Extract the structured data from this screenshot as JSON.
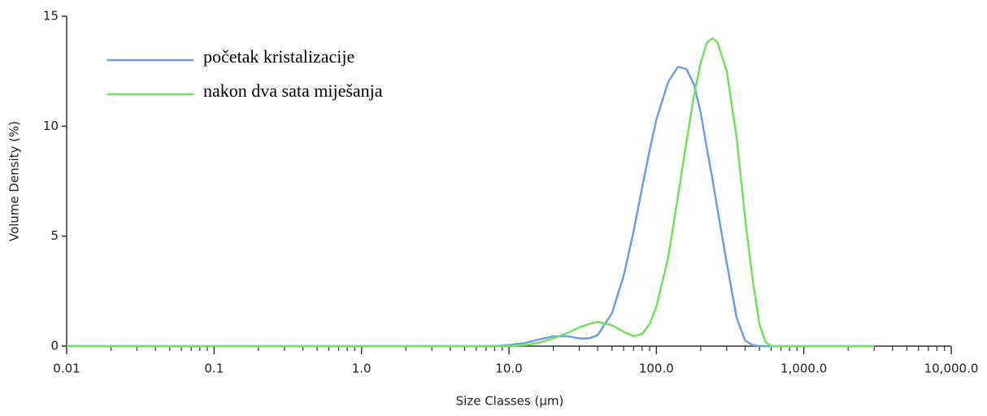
{
  "chart_data": {
    "type": "line",
    "xlabel": "Size Classes (µm)",
    "ylabel": "Volume Density (%)",
    "x": [
      0.01,
      5,
      8,
      10,
      13,
      16,
      20,
      25,
      30,
      35,
      40,
      50,
      60,
      70,
      80,
      90,
      100,
      120,
      140,
      160,
      180,
      200,
      220,
      240,
      260,
      300,
      350,
      400,
      450,
      500,
      550,
      600,
      3000
    ],
    "series": [
      {
        "name": "početak kristalizacije",
        "color": "#6f9fe0",
        "values": [
          0,
          0,
          0,
          0.05,
          0.15,
          0.3,
          0.45,
          0.45,
          0.35,
          0.35,
          0.5,
          1.5,
          3.2,
          5.2,
          7.2,
          8.9,
          10.3,
          12.0,
          12.7,
          12.6,
          11.9,
          10.6,
          9.0,
          7.6,
          6.2,
          3.8,
          1.3,
          0.25,
          0.05,
          0,
          0,
          0,
          0
        ]
      },
      {
        "name": "nakon dva sata miješanja",
        "color": "#74e05e",
        "values": [
          0,
          0,
          0,
          0,
          0.05,
          0.15,
          0.35,
          0.6,
          0.85,
          1.0,
          1.1,
          0.95,
          0.65,
          0.45,
          0.55,
          1.0,
          1.8,
          4.0,
          6.8,
          9.3,
          11.4,
          12.9,
          13.8,
          14.0,
          13.8,
          12.5,
          9.5,
          5.8,
          3.0,
          1.0,
          0.2,
          0,
          0
        ]
      }
    ],
    "xscale": "log",
    "xlim": [
      0.01,
      10000
    ],
    "xticks": [
      0.01,
      0.1,
      {
        "value": 1,
        "label": "1.0"
      },
      {
        "value": 10,
        "label": "10.0"
      },
      {
        "value": 100,
        "label": "100.0"
      },
      {
        "value": 1000,
        "label": "1,000.0"
      },
      {
        "value": 10000,
        "label": "10,000.0"
      }
    ],
    "xminorticks": [
      0.02,
      0.03,
      0.04,
      0.05,
      0.06,
      0.07,
      0.08,
      0.09,
      0.2,
      0.3,
      0.4,
      0.5,
      0.6,
      0.7,
      0.8,
      0.9,
      2,
      3,
      4,
      5,
      6,
      7,
      8,
      9,
      20,
      30,
      40,
      50,
      60,
      70,
      80,
      90,
      200,
      300,
      400,
      500,
      600,
      700,
      800,
      900,
      2000,
      3000,
      4000,
      5000,
      6000,
      7000,
      8000,
      9000
    ],
    "ylim": [
      0,
      15
    ],
    "yticks": [
      0,
      5,
      10,
      15
    ],
    "legend": "upper left"
  }
}
